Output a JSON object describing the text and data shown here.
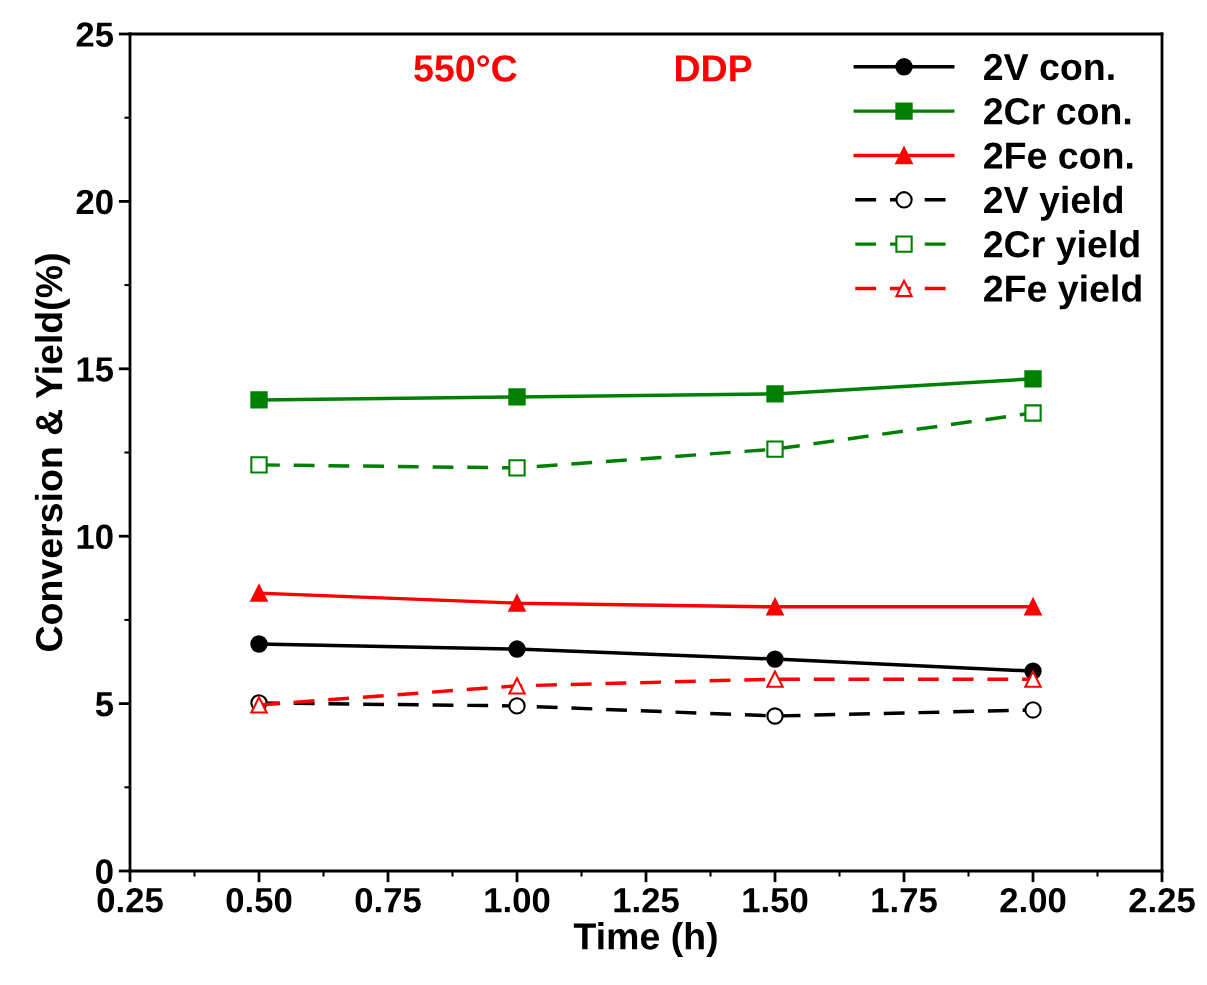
{
  "chart_data": {
    "type": "line",
    "xlabel": "Time (h)",
    "ylabel": "Conversion & Yield(%)",
    "x": [
      0.5,
      1.0,
      1.5,
      2.0
    ],
    "series": [
      {
        "name": "2V con.",
        "color": "#000000",
        "values": [
          6.78,
          6.63,
          6.33,
          5.97
        ],
        "marker": "circle",
        "line_style": "solid"
      },
      {
        "name": "2Cr con.",
        "color": "#008000",
        "values": [
          14.07,
          14.16,
          14.25,
          14.7
        ],
        "marker": "square",
        "line_style": "solid"
      },
      {
        "name": "2Fe con.",
        "color": "#ff0000",
        "values": [
          8.3,
          8.0,
          7.89,
          7.89
        ],
        "marker": "triangle",
        "line_style": "solid"
      },
      {
        "name": "2V yield",
        "color": "#000000",
        "values": [
          5.02,
          4.93,
          4.63,
          4.81
        ],
        "marker": "circle",
        "line_style": "dashed"
      },
      {
        "name": "2Cr yield",
        "color": "#008000",
        "values": [
          12.13,
          12.04,
          12.6,
          13.68
        ],
        "marker": "square",
        "line_style": "dashed"
      },
      {
        "name": "2Fe yield",
        "color": "#ff0000",
        "values": [
          4.96,
          5.53,
          5.73,
          5.73
        ],
        "marker": "triangle",
        "line_style": "dashed"
      }
    ],
    "annotations": [
      "550°C",
      "DDP"
    ],
    "xlim": [
      0.25,
      2.25
    ],
    "xticks": [
      {
        "value": 0.25,
        "label": "0.25"
      },
      {
        "value": 0.5,
        "label": "0.50"
      },
      {
        "value": 0.75,
        "label": "0.75"
      },
      {
        "value": 1.0,
        "label": "1.00"
      },
      {
        "value": 1.25,
        "label": "1.25"
      },
      {
        "value": 1.5,
        "label": "1.50"
      },
      {
        "value": 1.75,
        "label": "1.75"
      },
      {
        "value": 2.0,
        "label": "2.00"
      },
      {
        "value": 2.25,
        "label": "2.25"
      }
    ],
    "ylim": [
      0,
      25
    ],
    "yticks": [
      0,
      5,
      10,
      15,
      20,
      25
    ],
    "grid": false,
    "legend": "top right"
  }
}
